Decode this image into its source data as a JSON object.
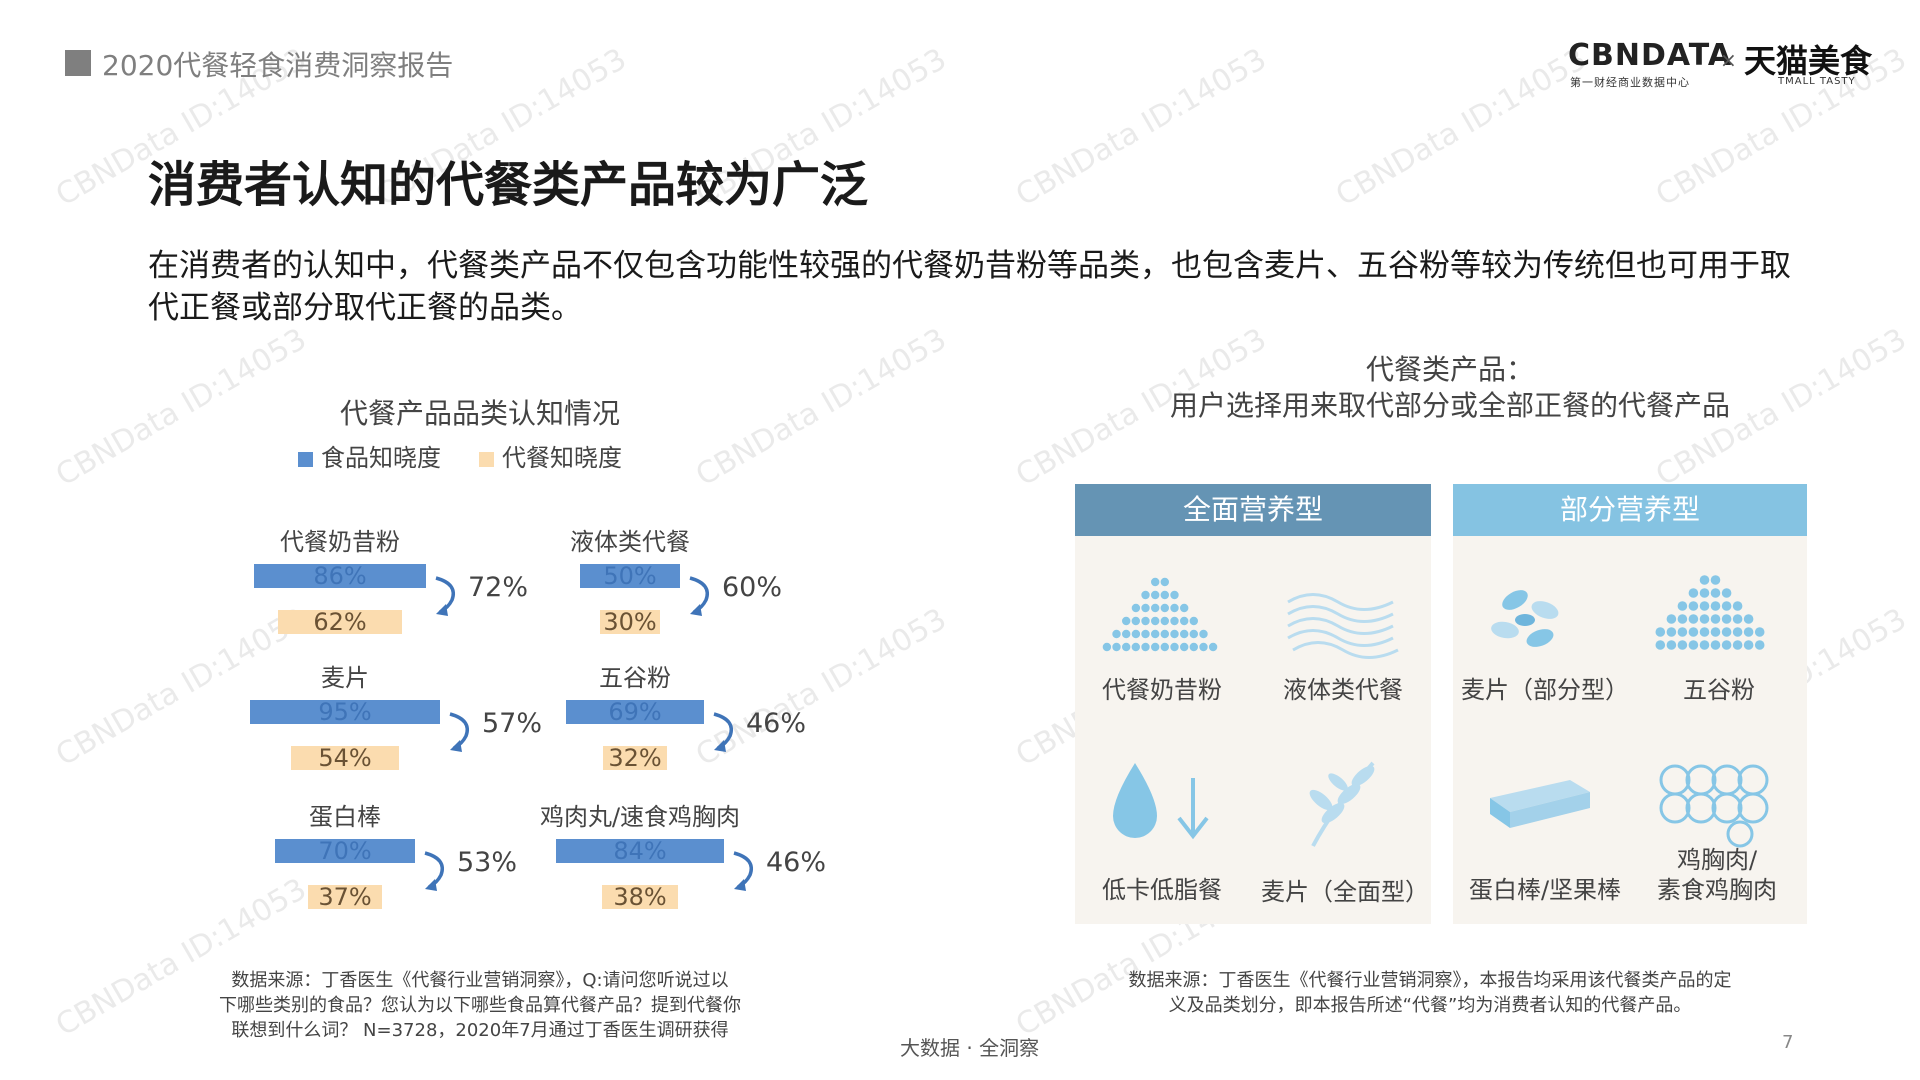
{
  "header": {
    "report_title": "2020代餐轻食消费洞察报告",
    "logo_cbn": "CBNDATA",
    "logo_cbn_sub": "第一财经商业数据中心",
    "logo_x": "×",
    "logo_tmall": "天猫美食",
    "logo_tmall_sub": "TMALL TASTY"
  },
  "title": "消费者认知的代餐类产品较为广泛",
  "subtitle": "在消费者的认知中，代餐类产品不仅包含功能性较强的代餐奶昔粉等品类，也包含麦片、五谷粉等较为传统但也可用于取代正餐或部分取代正餐的品类。",
  "chart_data": {
    "type": "bar",
    "title": "代餐产品品类认知情况",
    "series": [
      {
        "name": "食品知晓度",
        "color": "#5b8fcf",
        "values": [
          86,
          50,
          95,
          69,
          70,
          84
        ]
      },
      {
        "name": "代餐知晓度",
        "color": "#fbdcaf",
        "values": [
          62,
          30,
          54,
          32,
          37,
          38
        ]
      }
    ],
    "categories": [
      "代餐奶昔粉",
      "液体类代餐",
      "麦片",
      "五谷粉",
      "蛋白棒",
      "鸡肉丸/速食鸡胸肉"
    ],
    "conversion": [
      72,
      60,
      57,
      46,
      53,
      46
    ],
    "groups": [
      {
        "name": "代餐奶昔粉",
        "food": "86%",
        "meal": "62%",
        "conv": "72%",
        "food_v": 86,
        "meal_v": 62
      },
      {
        "name": "液体类代餐",
        "food": "50%",
        "meal": "30%",
        "conv": "60%",
        "food_v": 50,
        "meal_v": 30
      },
      {
        "name": "麦片",
        "food": "95%",
        "meal": "54%",
        "conv": "57%",
        "food_v": 95,
        "meal_v": 54
      },
      {
        "name": "五谷粉",
        "food": "69%",
        "meal": "32%",
        "conv": "46%",
        "food_v": 69,
        "meal_v": 32
      },
      {
        "name": "蛋白棒",
        "food": "70%",
        "meal": "37%",
        "conv": "53%",
        "food_v": 70,
        "meal_v": 37
      },
      {
        "name": "鸡肉丸/速食鸡胸肉",
        "food": "84%",
        "meal": "38%",
        "conv": "46%",
        "food_v": 84,
        "meal_v": 38
      }
    ]
  },
  "right_panel": {
    "title_line1": "代餐类产品：",
    "title_line2": "用户选择用来取代部分或全部正餐的代餐产品",
    "full": {
      "header": "全面营养型",
      "color": "#6594b4",
      "items": [
        "代餐奶昔粉",
        "液体类代餐",
        "低卡低脂餐",
        "麦片（全面型）"
      ]
    },
    "partial": {
      "header": "部分营养型",
      "color": "#85c3e2",
      "items": [
        "麦片（部分型）",
        "五谷粉",
        "蛋白棒/坚果棒",
        "鸡胸肉/",
        "素食鸡胸肉"
      ]
    }
  },
  "notes": {
    "left": [
      "数据来源：丁香医生《代餐行业营销洞察》，Q:请问您听说过以",
      "下哪些类别的食品？您认为以下哪些食品算代餐产品？提到代餐你",
      "联想到什么词？ N=3728，2020年7月通过丁香医生调研获得"
    ],
    "right": [
      "数据来源：丁香医生《代餐行业营销洞察》，本报告均采用该代餐类产品的定",
      "义及品类划分，即本报告所述“代餐”均为消费者认知的代餐产品。"
    ]
  },
  "footer": {
    "center": "大数据 · 全洞察",
    "page": "7"
  },
  "watermark": "CBNData ID:14053",
  "icons": [
    "powder-pile-icon",
    "liquid-waves-icon",
    "water-drop-arrow-icon",
    "wheat-leaf-icon",
    "oat-flakes-icon",
    "grain-pile-icon",
    "protein-bar-icon",
    "chicken-balls-icon"
  ]
}
